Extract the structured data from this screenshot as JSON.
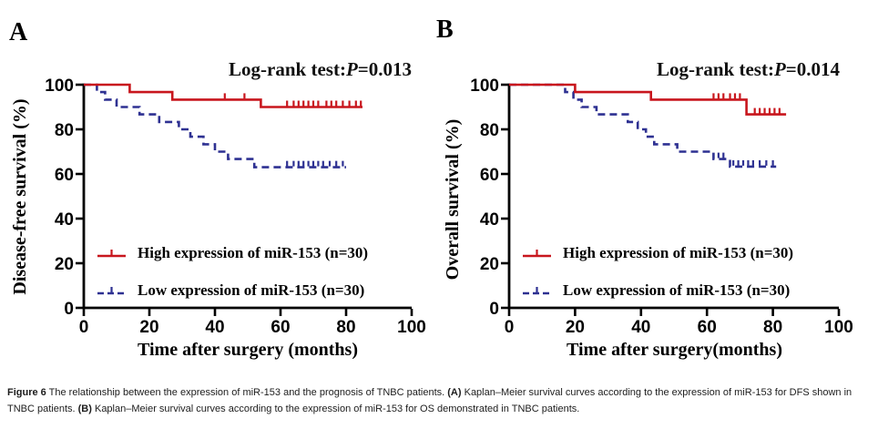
{
  "colors": {
    "high_expression": "#c8161d",
    "low_expression": "#2e3192",
    "axis": "#000000"
  },
  "figure": {
    "caption_segments": [
      {
        "text": "Figure 6",
        "bold": true
      },
      {
        "text": " The relationship between the expression of miR-153 and the prognosis of TNBC patients. ",
        "bold": false
      },
      {
        "text": "(A)",
        "bold": true
      },
      {
        "text": " Kaplan–Meier survival curves according to the expression of miR-153 for DFS shown in TNBC patients. ",
        "bold": false
      },
      {
        "text": "(B)",
        "bold": true
      },
      {
        "text": " Kaplan–Meier survival curves according to the expression of miR-153 for OS demonstrated in TNBC patients.",
        "bold": false
      }
    ]
  },
  "chart_data": [
    {
      "type": "line",
      "subtype": "kaplan-meier-step",
      "panel_label": "A",
      "annotation": {
        "prefix": "Log-rank test:",
        "p_symbol": "P",
        "p_value": "=0.013"
      },
      "xlabel": "Time after surgery (months)",
      "ylabel": "Disease-free survival (%)",
      "xlim": [
        0,
        100
      ],
      "ylim": [
        0,
        100
      ],
      "x_ticks": [
        0,
        20,
        40,
        60,
        80,
        100
      ],
      "y_ticks": [
        0,
        20,
        40,
        60,
        80,
        100
      ],
      "grid": false,
      "legend_position": "inside-lower-left",
      "series": [
        {
          "name": "High expression of miR-153 (n=30)",
          "color": "#c8161d",
          "line_style": "solid",
          "steps": [
            [
              0,
              100
            ],
            [
              14,
              100
            ],
            [
              14,
              96.7
            ],
            [
              27,
              96.7
            ],
            [
              27,
              93.3
            ],
            [
              54,
              93.3
            ],
            [
              54,
              90
            ],
            [
              85,
              90
            ]
          ],
          "censor_marks": [
            [
              43,
              93.3
            ],
            [
              49,
              93.3
            ],
            [
              62,
              90
            ],
            [
              64,
              90
            ],
            [
              65.5,
              90
            ],
            [
              67,
              90
            ],
            [
              68.5,
              90
            ],
            [
              70,
              90
            ],
            [
              71.5,
              90
            ],
            [
              74,
              90
            ],
            [
              75.5,
              90
            ],
            [
              77,
              90
            ],
            [
              79,
              90
            ],
            [
              81,
              90
            ],
            [
              83,
              90
            ],
            [
              84.5,
              90
            ]
          ]
        },
        {
          "name": "Low expression of miR-153 (n=30)",
          "color": "#2e3192",
          "line_style": "dashed",
          "steps": [
            [
              0,
              100
            ],
            [
              4,
              100
            ],
            [
              4,
              96.7
            ],
            [
              6.5,
              96.7
            ],
            [
              6.5,
              93.3
            ],
            [
              10,
              93.3
            ],
            [
              10,
              90
            ],
            [
              17,
              90
            ],
            [
              17,
              86.7
            ],
            [
              23,
              86.7
            ],
            [
              23,
              83.3
            ],
            [
              29,
              83.3
            ],
            [
              29,
              80
            ],
            [
              32.5,
              80
            ],
            [
              32.5,
              76.7
            ],
            [
              36.5,
              76.7
            ],
            [
              36.5,
              73.3
            ],
            [
              40,
              73.3
            ],
            [
              40,
              70
            ],
            [
              44,
              70
            ],
            [
              44,
              66.7
            ],
            [
              52,
              66.7
            ],
            [
              52,
              63
            ],
            [
              80,
              63
            ]
          ],
          "censor_marks": [
            [
              62,
              63
            ],
            [
              64,
              63
            ],
            [
              65.5,
              63
            ],
            [
              67,
              63
            ],
            [
              68.5,
              63
            ],
            [
              70,
              63
            ],
            [
              71.5,
              63
            ],
            [
              73,
              63
            ],
            [
              75,
              63
            ],
            [
              77,
              63
            ],
            [
              79,
              63
            ]
          ]
        }
      ]
    },
    {
      "type": "line",
      "subtype": "kaplan-meier-step",
      "panel_label": "B",
      "annotation": {
        "prefix": "Log-rank test:",
        "p_symbol": "P",
        "p_value": "=0.014"
      },
      "xlabel": "Time after surgery(months)",
      "ylabel": "Overall survival (%)",
      "xlim": [
        0,
        100
      ],
      "ylim": [
        0,
        100
      ],
      "x_ticks": [
        0,
        20,
        40,
        60,
        80,
        100
      ],
      "y_ticks": [
        0,
        20,
        40,
        60,
        80,
        100
      ],
      "grid": false,
      "legend_position": "inside-lower-left",
      "series": [
        {
          "name": "High expression of miR-153 (n=30)",
          "color": "#c8161d",
          "line_style": "solid",
          "steps": [
            [
              0,
              100
            ],
            [
              20,
              100
            ],
            [
              20,
              96.7
            ],
            [
              43,
              96.7
            ],
            [
              43,
              93.3
            ],
            [
              72,
              93.3
            ],
            [
              72,
              86.7
            ],
            [
              84,
              86.7
            ]
          ],
          "censor_marks": [
            [
              62,
              93.3
            ],
            [
              63.5,
              93.3
            ],
            [
              65,
              93.3
            ],
            [
              67,
              93.3
            ],
            [
              68.5,
              93.3
            ],
            [
              70,
              93.3
            ],
            [
              74.5,
              86.7
            ],
            [
              76,
              86.7
            ],
            [
              77.5,
              86.7
            ],
            [
              79,
              86.7
            ],
            [
              80.5,
              86.7
            ],
            [
              82,
              86.7
            ]
          ]
        },
        {
          "name": "Low expression of miR-153 (n=30)",
          "color": "#2e3192",
          "line_style": "dashed",
          "steps": [
            [
              0,
              100
            ],
            [
              17,
              100
            ],
            [
              17,
              96.7
            ],
            [
              19.5,
              96.7
            ],
            [
              19.5,
              93.3
            ],
            [
              22,
              93.3
            ],
            [
              22,
              90
            ],
            [
              26.5,
              90
            ],
            [
              26.5,
              86.7
            ],
            [
              36,
              86.7
            ],
            [
              36,
              83.3
            ],
            [
              39,
              83.3
            ],
            [
              39,
              80
            ],
            [
              41.5,
              80
            ],
            [
              41.5,
              76.7
            ],
            [
              44,
              76.7
            ],
            [
              44,
              73.3
            ],
            [
              51,
              73.3
            ],
            [
              51,
              70
            ],
            [
              62,
              70
            ],
            [
              62,
              66.7
            ],
            [
              67,
              66.7
            ],
            [
              67,
              63.3
            ],
            [
              81,
              63.3
            ]
          ],
          "censor_marks": [
            [
              63.5,
              66.7
            ],
            [
              65,
              66.7
            ],
            [
              68,
              63.3
            ],
            [
              69.5,
              63.3
            ],
            [
              71,
              63.3
            ],
            [
              72.5,
              63.3
            ],
            [
              74,
              63.3
            ],
            [
              76,
              63.3
            ],
            [
              78,
              63.3
            ],
            [
              80,
              63.3
            ]
          ]
        }
      ]
    }
  ]
}
